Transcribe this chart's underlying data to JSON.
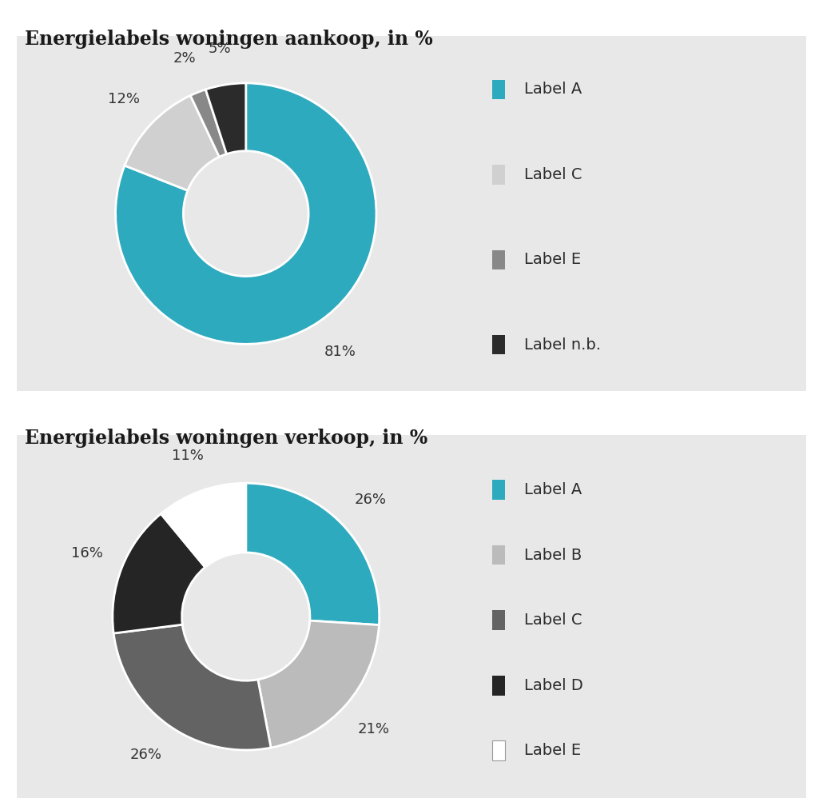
{
  "chart1": {
    "title": "Energielabels woningen aankoop, in %",
    "labels": [
      "Label A",
      "Label C",
      "Label E",
      "Label n.b."
    ],
    "values": [
      81,
      12,
      2,
      5
    ],
    "colors": [
      "#2EAABF",
      "#D0D0D0",
      "#888888",
      "#2B2B2B"
    ],
    "pct_labels": [
      "81%",
      "12%",
      "2%",
      "5%"
    ]
  },
  "chart2": {
    "title": "Energielabels woningen verkoop, in %",
    "labels": [
      "Label A",
      "Label B",
      "Label C",
      "Label D",
      "Label E"
    ],
    "values": [
      26,
      21,
      26,
      16,
      11
    ],
    "colors": [
      "#2EAABF",
      "#BBBBBB",
      "#636363",
      "#252525",
      "#FFFFFF"
    ],
    "pct_labels": [
      "26%",
      "21%",
      "26%",
      "16%",
      "11%"
    ]
  },
  "bg_color": "#E8E8E8",
  "title_fontsize": 17,
  "label_fontsize": 13,
  "legend_fontsize": 14,
  "page_bg": "#FFFFFF",
  "donut_width": 0.52
}
